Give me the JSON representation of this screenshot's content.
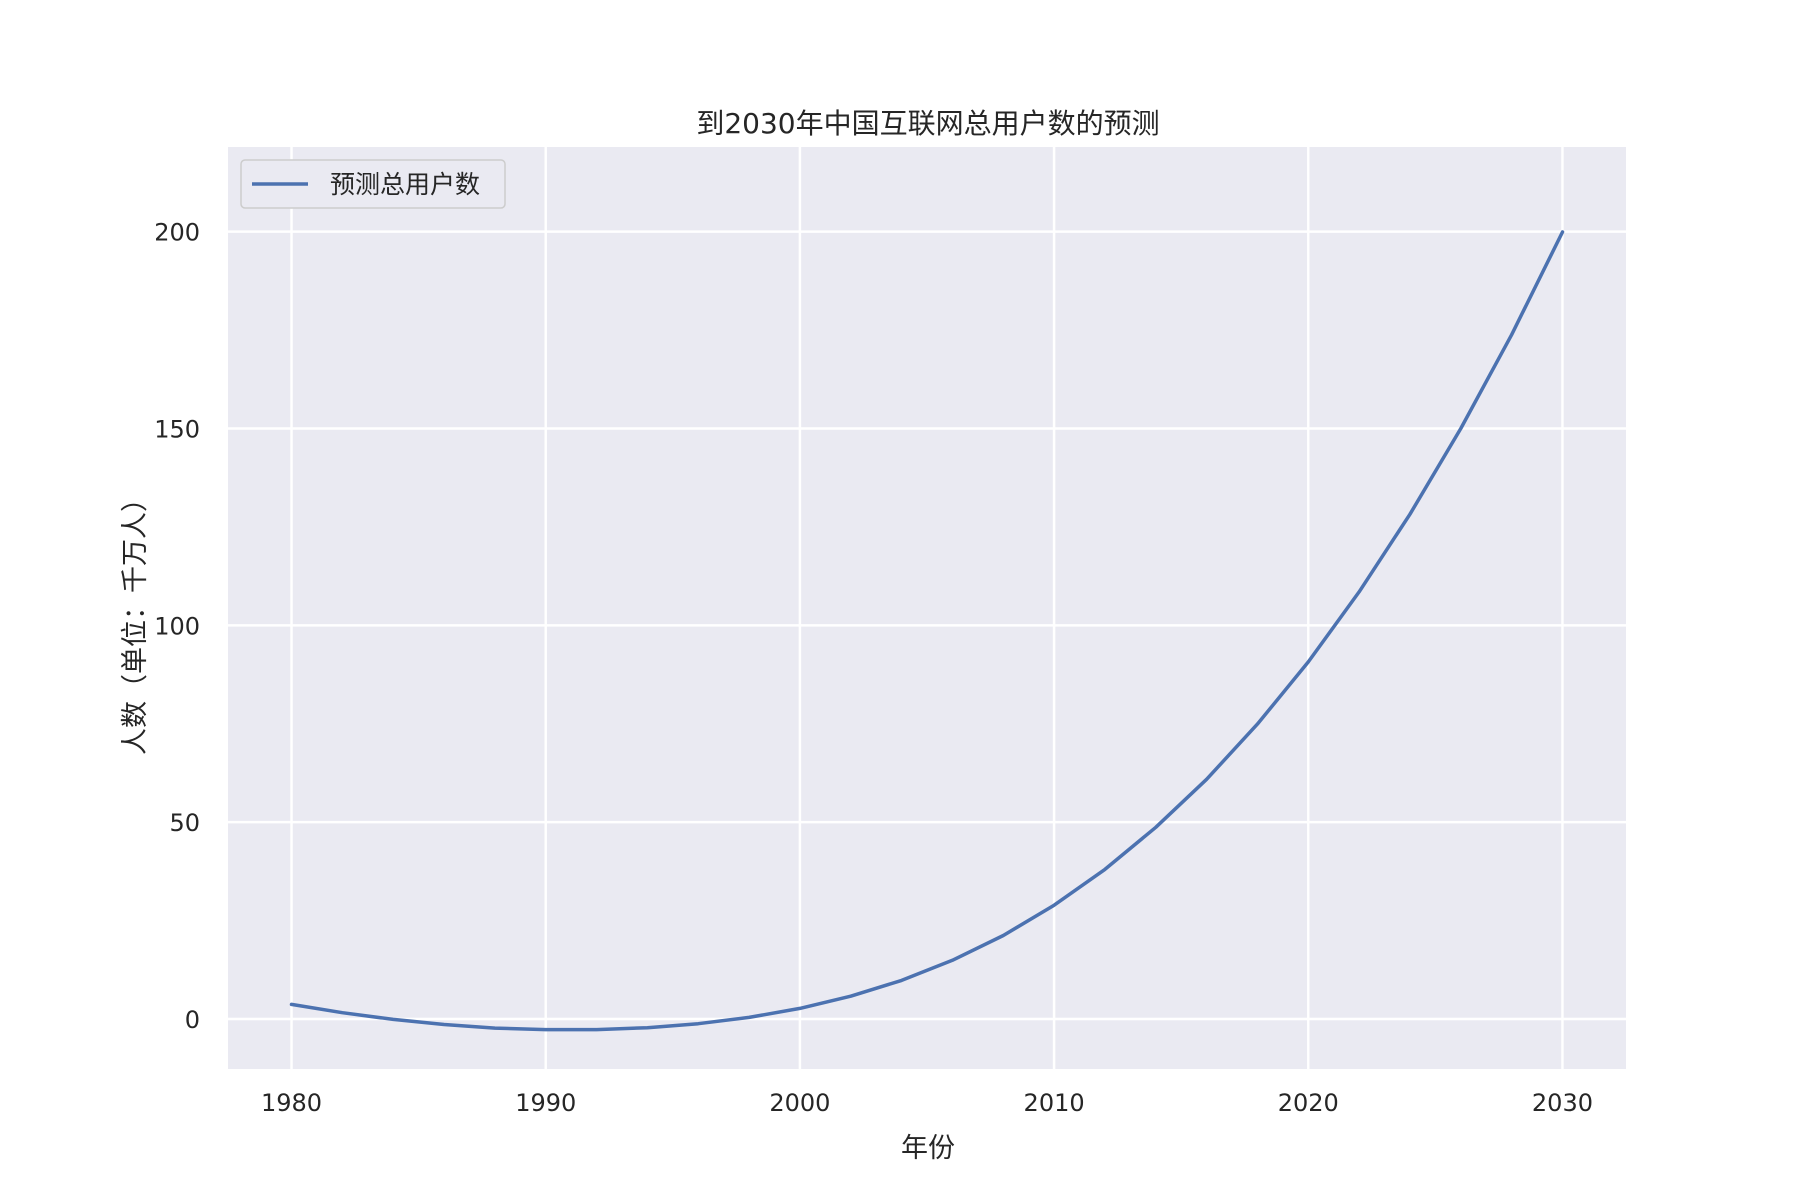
{
  "chart_data": {
    "type": "line",
    "title": "到2030年中国互联网总用户数的预测",
    "xlabel": "年份",
    "ylabel": "人数（单位：千万人）",
    "x_ticks": [
      "1980",
      "1990",
      "2000",
      "2010",
      "2020",
      "2030"
    ],
    "y_ticks": [
      "0",
      "50",
      "100",
      "150",
      "200"
    ],
    "xlim": [
      1977.5,
      2032.5
    ],
    "ylim": [
      -12.7,
      221.5
    ],
    "grid": true,
    "background": "#eaeaf2",
    "legend": {
      "position": "top-left",
      "entries": [
        "预测总用户数"
      ]
    },
    "series": [
      {
        "name": "预测总用户数",
        "color": "#4c72b0",
        "x": [
          1980,
          1982,
          1984,
          1986,
          1988,
          1990,
          1992,
          1994,
          1996,
          1998,
          2000,
          2002,
          2004,
          2006,
          2008,
          2010,
          2012,
          2014,
          2016,
          2018,
          2020,
          2022,
          2024,
          2026,
          2028,
          2030
        ],
        "values": [
          3.7,
          1.6,
          -0.1,
          -1.4,
          -2.3,
          -2.7,
          -2.7,
          -2.2,
          -1.2,
          0.4,
          2.7,
          5.8,
          9.8,
          14.9,
          21.2,
          28.9,
          38.0,
          48.7,
          60.9,
          74.9,
          90.7,
          108.5,
          128.2,
          150.0,
          173.8,
          199.9
        ]
      }
    ]
  }
}
